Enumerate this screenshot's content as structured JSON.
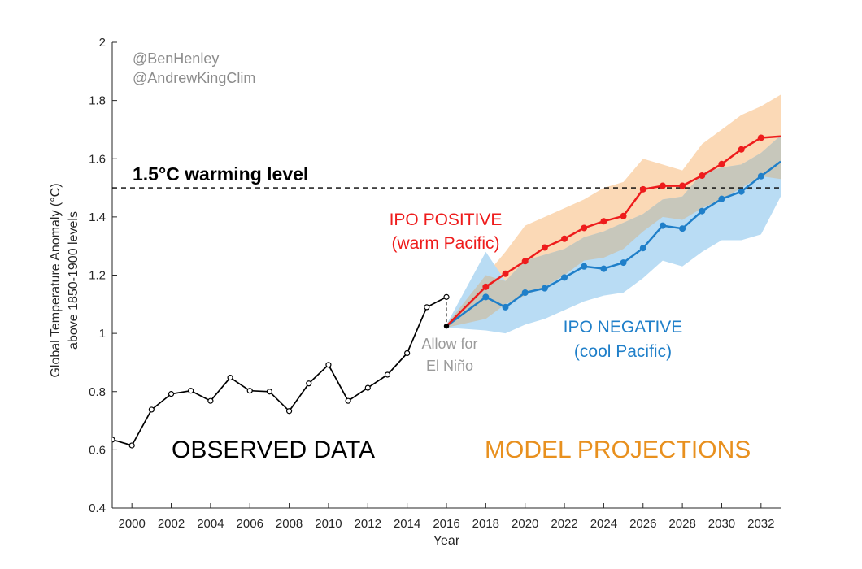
{
  "credits": [
    "@BenHenley",
    "@AndrewKingClim"
  ],
  "labels": {
    "threshold": "1.5°C warming level",
    "ipo_positive_line1": "IPO POSITIVE",
    "ipo_positive_line2": "(warm Pacific)",
    "ipo_negative_line1": "IPO NEGATIVE",
    "ipo_negative_line2": "(cool Pacific)",
    "el_nino_line1": "Allow for",
    "el_nino_line2": "El Niño",
    "observed": "OBSERVED DATA",
    "projections": "MODEL PROJECTIONS"
  },
  "colors": {
    "observed": "#000000",
    "ipo_positive": "#ee1c1c",
    "ipo_negative": "#1f7fc9",
    "band_positive": "#fbd9b6",
    "band_negative": "#b9dcf4",
    "band_overlap": "#c7c7bb",
    "projections_text": "#e8901e",
    "credit_text": "#8c8c8c"
  },
  "chart_data": {
    "type": "line",
    "xlabel": "Year",
    "ylabel_line1": "Global Temperature Anomaly (°C)",
    "ylabel_line2": "above 1850-1900 levels",
    "xlim": [
      1999,
      2033
    ],
    "ylim": [
      0.4,
      2.0
    ],
    "xticks": [
      2000,
      2002,
      2004,
      2006,
      2008,
      2010,
      2012,
      2014,
      2016,
      2018,
      2020,
      2022,
      2024,
      2026,
      2028,
      2030,
      2032
    ],
    "yticks": [
      0.4,
      0.6,
      0.8,
      1,
      1.2,
      1.4,
      1.6,
      1.8,
      2
    ],
    "ytick_labels": [
      "0.4",
      "0.6",
      "0.8",
      "1",
      "1.2",
      "1.4",
      "1.6",
      "1.8",
      "2"
    ],
    "threshold": 1.5,
    "grid": false,
    "series": [
      {
        "key": "observed",
        "x": [
          1999,
          2000,
          2001,
          2002,
          2003,
          2004,
          2005,
          2006,
          2007,
          2008,
          2009,
          2010,
          2011,
          2012,
          2013,
          2014,
          2015,
          2016
        ],
        "y": [
          0.635,
          0.615,
          0.738,
          0.792,
          0.803,
          0.768,
          0.848,
          0.803,
          0.8,
          0.733,
          0.828,
          0.892,
          0.768,
          0.813,
          0.858,
          0.932,
          1.09,
          1.125
        ]
      },
      {
        "key": "el_nino_adjusted",
        "x": [
          2016
        ],
        "y": [
          1.025
        ]
      },
      {
        "name": "IPO POSITIVE",
        "key": "ipo_positive",
        "x": [
          2016,
          2018,
          2019,
          2020,
          2021,
          2022,
          2023,
          2024,
          2025,
          2026,
          2027,
          2028,
          2029,
          2030,
          2031,
          2032,
          2033
        ],
        "y": [
          1.025,
          1.16,
          1.205,
          1.248,
          1.295,
          1.325,
          1.362,
          1.385,
          1.403,
          1.495,
          1.507,
          1.507,
          1.542,
          1.582,
          1.632,
          1.672,
          1.677
        ]
      },
      {
        "name": "IPO NEGATIVE",
        "key": "ipo_negative",
        "x": [
          2016,
          2018,
          2019,
          2020,
          2021,
          2022,
          2023,
          2024,
          2025,
          2026,
          2027,
          2028,
          2029,
          2030,
          2031,
          2032,
          2033
        ],
        "y": [
          1.025,
          1.125,
          1.09,
          1.14,
          1.155,
          1.192,
          1.23,
          1.222,
          1.243,
          1.293,
          1.37,
          1.36,
          1.42,
          1.462,
          1.487,
          1.54,
          1.59
        ]
      }
    ],
    "bands": [
      {
        "key": "ipo_positive_range",
        "x": [
          2016,
          2018,
          2019,
          2020,
          2021,
          2022,
          2023,
          2024,
          2025,
          2026,
          2027,
          2028,
          2029,
          2030,
          2031,
          2032,
          2033
        ],
        "upper": [
          1.03,
          1.2,
          1.28,
          1.37,
          1.4,
          1.43,
          1.46,
          1.5,
          1.52,
          1.6,
          1.58,
          1.56,
          1.65,
          1.7,
          1.75,
          1.78,
          1.82
        ],
        "lower": [
          1.02,
          1.05,
          1.1,
          1.13,
          1.16,
          1.2,
          1.25,
          1.26,
          1.29,
          1.35,
          1.4,
          1.39,
          1.43,
          1.46,
          1.5,
          1.54,
          1.53
        ]
      },
      {
        "key": "ipo_negative_range",
        "x": [
          2016,
          2018,
          2019,
          2020,
          2021,
          2022,
          2023,
          2024,
          2025,
          2026,
          2027,
          2028,
          2029,
          2030,
          2031,
          2032,
          2033
        ],
        "upper": [
          1.03,
          1.28,
          1.18,
          1.25,
          1.27,
          1.29,
          1.33,
          1.35,
          1.38,
          1.41,
          1.46,
          1.47,
          1.55,
          1.57,
          1.58,
          1.62,
          1.68
        ],
        "lower": [
          1.02,
          1.01,
          1.0,
          1.03,
          1.05,
          1.08,
          1.11,
          1.13,
          1.14,
          1.19,
          1.25,
          1.23,
          1.28,
          1.32,
          1.32,
          1.34,
          1.47
        ]
      }
    ]
  }
}
